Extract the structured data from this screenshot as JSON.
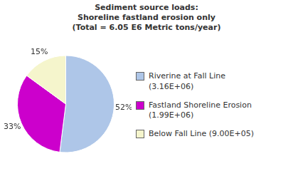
{
  "chart_data": {
    "type": "pie",
    "title": "Sediment source loads:\nShoreline fastland erosion only\n(Total = 6.05 E6 Metric tons/year)",
    "categories": [
      "Riverine at Fall Line\n(3.16E+06)",
      "Fastland Shoreline Erosion\n(1.99E+06)",
      "Below Fall Line (9.00E+05)"
    ],
    "values": [
      52,
      33,
      15
    ],
    "value_labels": [
      "52%",
      "33%",
      "15%"
    ],
    "data_labels": true,
    "colors": [
      "#aec6e8",
      "#cc00cc",
      "#f5f5cc"
    ],
    "legend": "right"
  }
}
